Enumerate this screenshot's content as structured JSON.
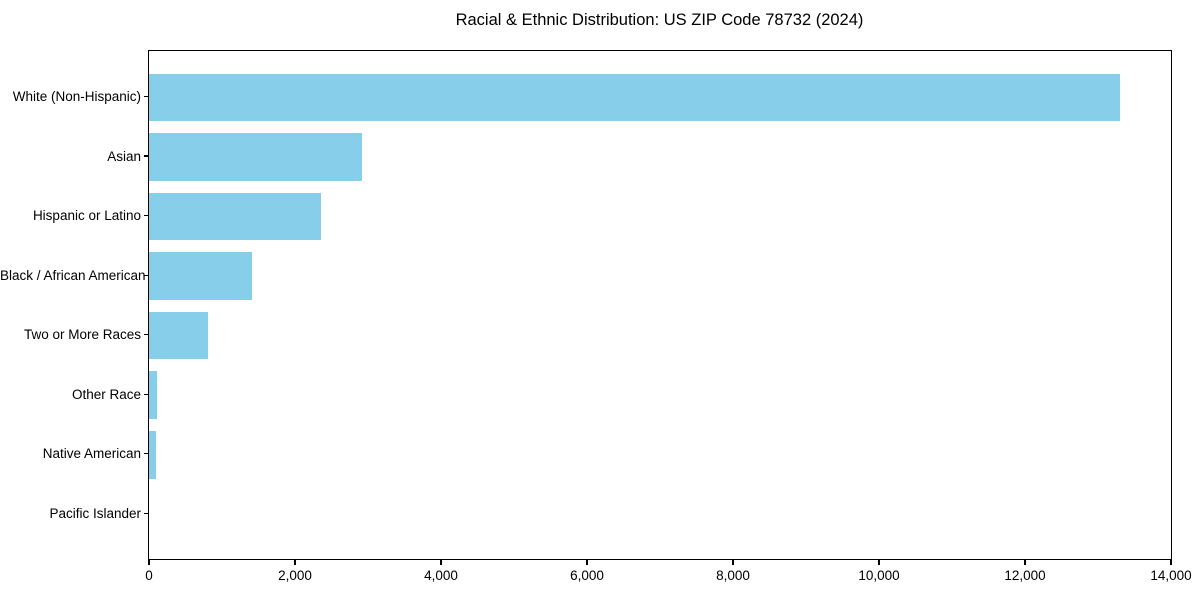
{
  "figure": {
    "background": "#ffffff"
  },
  "chart_data": {
    "type": "bar",
    "orientation": "horizontal",
    "title": "Racial & Ethnic Distribution: US ZIP Code 78732 (2024)",
    "categories": [
      "White (Non-Hispanic)",
      "Asian",
      "Hispanic or Latino",
      "Black / African American",
      "Two or More Races",
      "Other Race",
      "Native American",
      "Pacific Islander"
    ],
    "values": [
      13300,
      2920,
      2360,
      1415,
      815,
      115,
      90,
      0
    ],
    "xlabel": "",
    "ylabel": "",
    "xlim": [
      0,
      14000
    ],
    "xticks": [
      0,
      2000,
      4000,
      6000,
      8000,
      10000,
      12000,
      14000
    ],
    "xtick_labels": [
      "0",
      "2,000",
      "4,000",
      "6,000",
      "8,000",
      "10,000",
      "12,000",
      "14,000"
    ],
    "bar_color": "#87CEEB",
    "axis_color": "#000000",
    "text_color": "#000000",
    "grid": false,
    "legend": null
  }
}
